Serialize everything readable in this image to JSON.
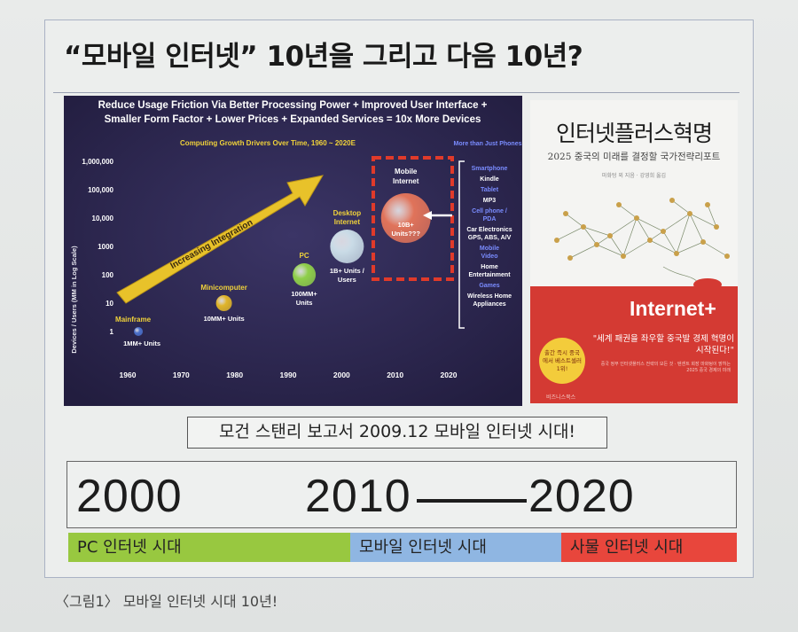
{
  "title": "“모바일 인터넷” 10년을 그리고 다음 10년?",
  "chart": {
    "header_line1": "Reduce Usage Friction Via Better Processing Power + Improved User Interface +",
    "header_line2": "Smaller Form Factor + Lower Prices + Expanded Services = 10x More Devices",
    "subtitle": "Computing Growth Drivers Over Time, 1960 ~ 2020E",
    "ylabel": "Devices / Users (MM in Log Scale)",
    "arrow_label": "Increasing Integration",
    "side_header": "More than Just Phones",
    "side_items": [
      "Smartphone",
      "Kindle",
      "Tablet",
      "MP3",
      "Cell phone / PDA",
      "Car Electronics GPS, ABS, A/V",
      "Mobile Video",
      "Home Entertainment",
      "Games",
      "Wireless Home Appliances"
    ],
    "colors": {
      "background": "#2a2548",
      "arrow": "#e8c22a",
      "dashed": "#e03a2a",
      "side_blue": "#7a8cff"
    }
  },
  "chart_data": {
    "type": "scatter",
    "title": "Computing Growth Drivers Over Time, 1960 ~ 2020E",
    "ylabel": "Devices / Users (MM in Log Scale)",
    "x_ticks": [
      "1960",
      "1970",
      "1980",
      "1990",
      "2000",
      "2010",
      "2020"
    ],
    "y_ticks": [
      "1",
      "10",
      "100",
      "1000",
      "10,000",
      "100,000",
      "1,000,000"
    ],
    "y_scale": "log",
    "xlim": [
      1960,
      2020
    ],
    "points": [
      {
        "name": "Mainframe",
        "x": 1962,
        "y": 1,
        "label": "1MM+ Units",
        "color": "#4a6fc9"
      },
      {
        "name": "Minicomputer",
        "x": 1978,
        "y": 10,
        "label": "10MM+ Units",
        "color": "#e0b52a"
      },
      {
        "name": "PC",
        "x": 1993,
        "y": 100,
        "label": "100MM+ Units",
        "color": "#8fcf4a"
      },
      {
        "name": "Desktop Internet",
        "x": 2001,
        "y": 1000,
        "label": "1B+ Units / Users",
        "color": "#c9dbe6"
      },
      {
        "name": "Mobile Internet",
        "x": 2012,
        "y": 10000,
        "label": "10B+ Units???",
        "color": "#e0735a"
      }
    ]
  },
  "book": {
    "title": "인터넷플러스혁명",
    "subtitle": "2025 중국의 미래를 결정할 국가전략리포트",
    "meta": "마화텅 외 지음 · 강영희 옮김",
    "logo": "Internet+",
    "badge": "출간 즉시 중국에서 베스트셀러 1위!",
    "quote": "\"세계 패권을 좌우할 중국발 경제 혁명이 시작된다!\"",
    "fine_print": "중국 정부 인터넷플러스 전략의 모든 것 · 텐센트 회장 마화텅이 밝히는 2025 중국 경제의 미래",
    "publisher": "비즈니스북스",
    "colors": {
      "red": "#d43a33",
      "badge": "#f3cc3b"
    }
  },
  "caption_box": "모건 스탠리 보고서 2009.12 모바일 인터넷 시대!",
  "timeline": {
    "years": [
      "2000",
      "2010",
      "2020"
    ],
    "eras": [
      {
        "label": "PC 인터넷 시대",
        "color": "#98c840"
      },
      {
        "label": "모바일 인터넷 시대",
        "color": "#8fb6e2"
      },
      {
        "label": "사물 인터넷 시대",
        "color": "#e8463c"
      }
    ]
  },
  "figure_caption": "〈그림1〉 모바일 인터넷 시대 10년!"
}
